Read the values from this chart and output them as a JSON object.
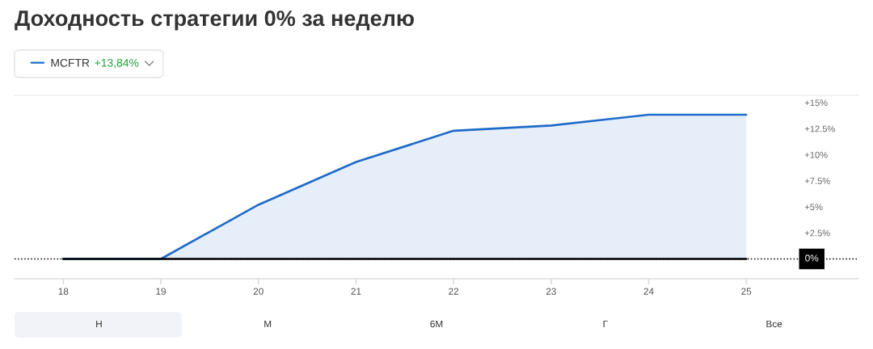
{
  "chart_data": {
    "type": "line",
    "title": "Доходность стратегии 0% за неделю",
    "x": [
      18,
      19,
      20,
      21,
      22,
      23,
      24,
      25
    ],
    "series": [
      {
        "name": "MCFTR",
        "type": "area",
        "color": "#1f6bc9",
        "values": [
          0,
          0,
          5.2,
          9.3,
          12.3,
          12.8,
          13.84,
          13.84
        ]
      },
      {
        "color": "#000000",
        "values": [
          0,
          0,
          0,
          0,
          0,
          0,
          0,
          0
        ]
      }
    ],
    "xlim": [
      17.5,
      26.15
    ],
    "xticks": [
      18,
      19,
      20,
      21,
      22,
      23,
      24,
      25
    ],
    "ylim": [
      -1.9,
      15.7
    ],
    "yticks": [
      {
        "value": 2.5,
        "label": "+2.5%"
      },
      {
        "value": 5,
        "label": "+5%"
      },
      {
        "value": 7.5,
        "label": "+7.5%"
      },
      {
        "value": 10,
        "label": "+10%"
      },
      {
        "value": 12.5,
        "label": "+12.5%"
      },
      {
        "value": 15,
        "label": "+15%"
      }
    ],
    "ref_lines": [
      {
        "axis": "y",
        "value": 0,
        "label": "0%",
        "color": "#000000",
        "line_style": "dotted"
      }
    ],
    "annotations": [
      "+13,84%",
      "Н",
      "М",
      "6М",
      "Г",
      "Все"
    ],
    "legend": "top left",
    "grid": false,
    "marker": "none"
  }
}
